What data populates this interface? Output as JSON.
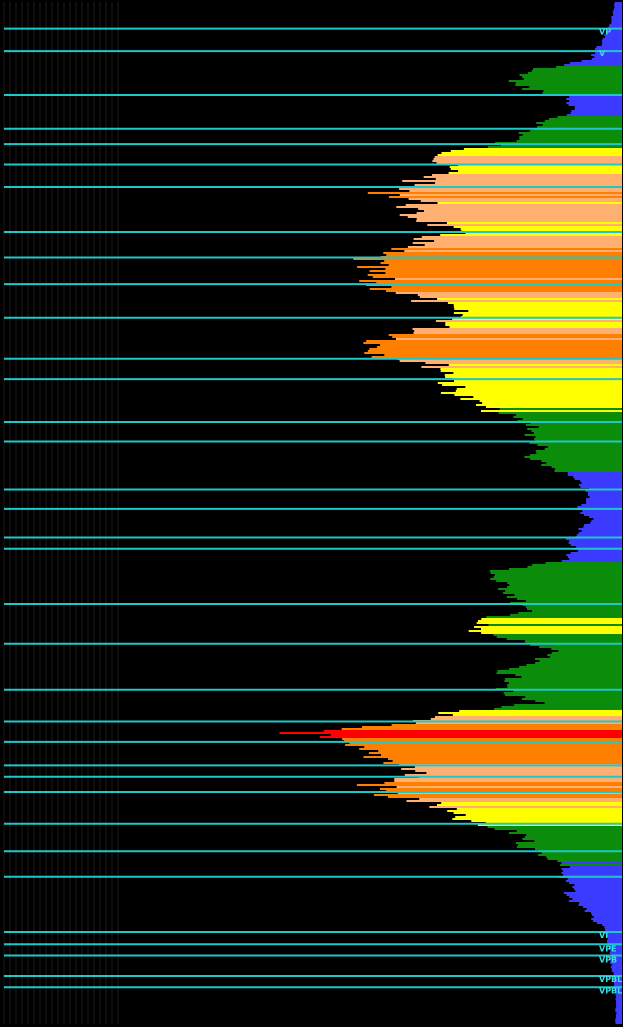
{
  "colors": {
    "background": "#000000",
    "grid": "#1a1a1a",
    "level_line": "#1fc8c8",
    "level_text": "#37e0e0",
    "profile_bands": {
      "very_low": "#3b3bff",
      "low": "#0b8c0b",
      "mid": "#ffff00",
      "high": "#ffb070",
      "very_high": "#ff8000",
      "peak": "#ff0000"
    }
  },
  "chart_data": {
    "type": "area",
    "description_title": "",
    "xlabel": "",
    "ylabel": "",
    "orientation": "horizontal-right",
    "x_range": [
      0,
      1
    ],
    "y_range": [
      0,
      1
    ],
    "grid": true,
    "legend": "none",
    "profile_rows": [
      [
        0.0,
        0.012
      ],
      [
        0.02,
        0.018
      ],
      [
        0.04,
        0.035
      ],
      [
        0.055,
        0.05
      ],
      [
        0.068,
        0.16
      ],
      [
        0.08,
        0.18
      ],
      [
        0.092,
        0.09
      ],
      [
        0.105,
        0.08
      ],
      [
        0.115,
        0.12
      ],
      [
        0.125,
        0.15
      ],
      [
        0.135,
        0.18
      ],
      [
        0.145,
        0.26
      ],
      [
        0.155,
        0.3
      ],
      [
        0.165,
        0.28
      ],
      [
        0.175,
        0.33
      ],
      [
        0.185,
        0.38
      ],
      [
        0.195,
        0.32
      ],
      [
        0.205,
        0.36
      ],
      [
        0.215,
        0.3
      ],
      [
        0.225,
        0.28
      ],
      [
        0.235,
        0.34
      ],
      [
        0.245,
        0.4
      ],
      [
        0.255,
        0.42
      ],
      [
        0.265,
        0.415
      ],
      [
        0.275,
        0.4
      ],
      [
        0.285,
        0.35
      ],
      [
        0.295,
        0.3
      ],
      [
        0.305,
        0.26
      ],
      [
        0.315,
        0.29
      ],
      [
        0.325,
        0.35
      ],
      [
        0.335,
        0.4
      ],
      [
        0.345,
        0.38
      ],
      [
        0.355,
        0.3
      ],
      [
        0.365,
        0.27
      ],
      [
        0.375,
        0.28
      ],
      [
        0.385,
        0.26
      ],
      [
        0.395,
        0.23
      ],
      [
        0.405,
        0.18
      ],
      [
        0.415,
        0.14
      ],
      [
        0.425,
        0.15
      ],
      [
        0.435,
        0.13
      ],
      [
        0.445,
        0.16
      ],
      [
        0.455,
        0.11
      ],
      [
        0.465,
        0.08
      ],
      [
        0.475,
        0.06
      ],
      [
        0.485,
        0.055
      ],
      [
        0.495,
        0.07
      ],
      [
        0.505,
        0.05
      ],
      [
        0.515,
        0.065
      ],
      [
        0.525,
        0.085
      ],
      [
        0.535,
        0.075
      ],
      [
        0.545,
        0.09
      ],
      [
        0.555,
        0.2
      ],
      [
        0.565,
        0.21
      ],
      [
        0.575,
        0.18
      ],
      [
        0.585,
        0.17
      ],
      [
        0.595,
        0.16
      ],
      [
        0.605,
        0.23
      ],
      [
        0.615,
        0.25
      ],
      [
        0.625,
        0.16
      ],
      [
        0.635,
        0.11
      ],
      [
        0.645,
        0.15
      ],
      [
        0.655,
        0.19
      ],
      [
        0.665,
        0.17
      ],
      [
        0.675,
        0.2
      ],
      [
        0.685,
        0.13
      ],
      [
        0.695,
        0.29
      ],
      [
        0.705,
        0.37
      ],
      [
        0.715,
        0.52
      ],
      [
        0.725,
        0.47
      ],
      [
        0.735,
        0.41
      ],
      [
        0.745,
        0.35
      ],
      [
        0.755,
        0.33
      ],
      [
        0.765,
        0.4
      ],
      [
        0.775,
        0.38
      ],
      [
        0.785,
        0.3
      ],
      [
        0.795,
        0.28
      ],
      [
        0.805,
        0.23
      ],
      [
        0.815,
        0.15
      ],
      [
        0.825,
        0.16
      ],
      [
        0.835,
        0.12
      ],
      [
        0.845,
        0.09
      ],
      [
        0.855,
        0.1
      ],
      [
        0.865,
        0.08
      ],
      [
        0.875,
        0.09
      ],
      [
        0.885,
        0.06
      ],
      [
        0.895,
        0.05
      ],
      [
        0.905,
        0.03
      ],
      [
        0.915,
        0.025
      ],
      [
        0.93,
        0.02
      ],
      [
        0.95,
        0.015
      ],
      [
        0.97,
        0.01
      ],
      [
        1.0,
        0.01
      ]
    ],
    "level_lines_y": [
      0.026,
      0.048,
      0.091,
      0.124,
      0.139,
      0.159,
      0.181,
      0.225,
      0.25,
      0.276,
      0.309,
      0.349,
      0.369,
      0.411,
      0.43,
      0.477,
      0.496,
      0.524,
      0.535,
      0.589,
      0.628,
      0.673,
      0.704,
      0.724,
      0.747,
      0.758,
      0.773,
      0.804,
      0.831,
      0.856,
      0.91,
      0.922,
      0.933,
      0.953,
      0.964
    ],
    "level_labels": [
      {
        "text": "VP",
        "y": 0.032
      },
      {
        "text": "V",
        "y": 0.053
      },
      {
        "text": "VI",
        "y": 0.916
      },
      {
        "text": "VPE",
        "y": 0.929
      },
      {
        "text": "VPB",
        "y": 0.94
      },
      {
        "text": "VPBL",
        "y": 0.959
      },
      {
        "text": "VPBL'",
        "y": 0.97
      }
    ]
  }
}
